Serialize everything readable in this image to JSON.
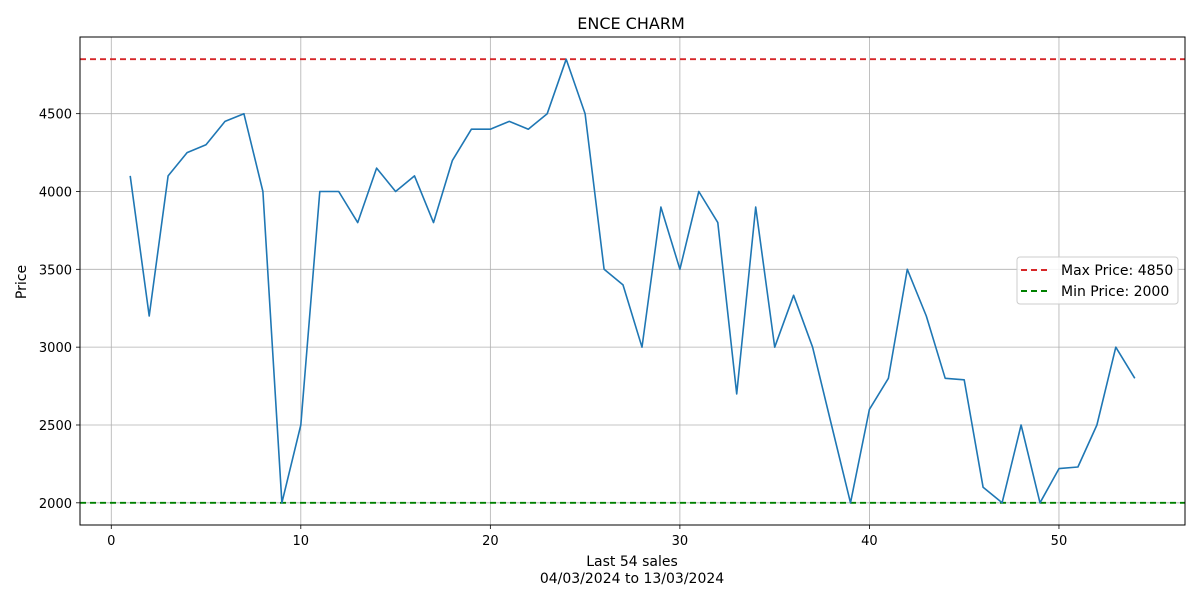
{
  "chart_data": {
    "type": "line",
    "title": "ENCE CHARM",
    "xlabel": "Last 54 sales",
    "xlabel_sub": "04/03/2024 to 13/03/2024",
    "ylabel": "Price",
    "xlim": [
      -1.65,
      56.65
    ],
    "ylim": [
      1857.5,
      4992.5
    ],
    "xticks": [
      0,
      10,
      20,
      30,
      40,
      50
    ],
    "yticks": [
      2000,
      2500,
      3000,
      3500,
      4000,
      4500
    ],
    "grid": true,
    "legend_position": "center-right",
    "series": [
      {
        "color": "#1f77b4",
        "x": [
          1,
          2,
          3,
          4,
          5,
          6,
          7,
          8,
          9,
          10,
          11,
          12,
          13,
          14,
          15,
          16,
          17,
          18,
          19,
          20,
          21,
          22,
          23,
          24,
          25,
          26,
          27,
          28,
          29,
          30,
          31,
          32,
          33,
          34,
          35,
          36,
          37,
          38,
          39,
          40,
          41,
          42,
          43,
          44,
          45,
          46,
          47,
          48,
          49,
          50,
          51,
          52,
          53,
          54
        ],
        "values": [
          4100,
          3200,
          4100,
          4250,
          4300,
          4450,
          4500,
          4000,
          2000,
          2500,
          4000,
          4000,
          3800,
          4150,
          4000,
          4100,
          3800,
          4200,
          4400,
          4400,
          4450,
          4400,
          4500,
          4850,
          4500,
          3500,
          3400,
          3000,
          3900,
          3500,
          4000,
          3800,
          2700,
          3900,
          3000,
          3333,
          3000,
          2500,
          2000,
          2600,
          2800,
          3500,
          3200,
          2800,
          2790,
          2100,
          2000,
          2500,
          2000,
          2220,
          2230,
          2500,
          3000,
          2800
        ]
      }
    ],
    "reference_lines": [
      {
        "name": "Max Price: 4850",
        "value": 4850,
        "color": "#d62728"
      },
      {
        "name": "Min Price: 2000",
        "value": 2000,
        "color": "#008000"
      }
    ]
  }
}
